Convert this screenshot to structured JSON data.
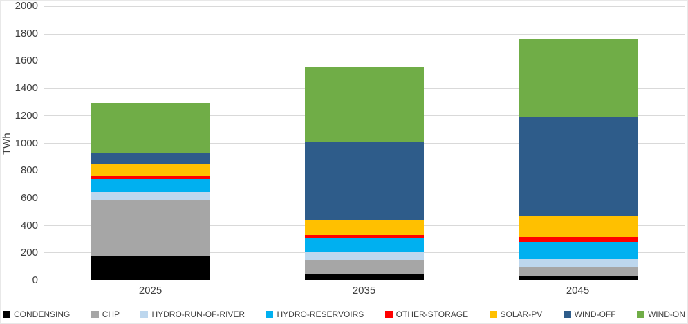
{
  "chart_data": {
    "type": "bar",
    "subtype": "stacked",
    "title": "",
    "xlabel": "",
    "ylabel": "TWh",
    "ylim": [
      0,
      2000
    ],
    "ytick_step": 200,
    "grid": true,
    "legend_position": "bottom",
    "categories": [
      "2025",
      "2035",
      "2045"
    ],
    "series": [
      {
        "name": "CONDENSING",
        "color": "#000000",
        "values": [
          175,
          40,
          30
        ]
      },
      {
        "name": "CHP",
        "color": "#a6a6a6",
        "values": [
          405,
          105,
          60
        ]
      },
      {
        "name": "HYDRO-RUN-OF-RIVER",
        "color": "#bdd7ee",
        "values": [
          60,
          55,
          60
        ]
      },
      {
        "name": "HYDRO-RESERVOIRS",
        "color": "#00b0f0",
        "values": [
          100,
          110,
          125
        ]
      },
      {
        "name": "OTHER-STORAGE",
        "color": "#ff0000",
        "values": [
          20,
          20,
          40
        ]
      },
      {
        "name": "SOLAR-PV",
        "color": "#ffc000",
        "values": [
          85,
          110,
          155
        ]
      },
      {
        "name": "WIND-OFF",
        "color": "#2e5c8a",
        "values": [
          80,
          565,
          715
        ]
      },
      {
        "name": "WIND-ON",
        "color": "#70ad47",
        "values": [
          370,
          550,
          580
        ]
      }
    ]
  }
}
